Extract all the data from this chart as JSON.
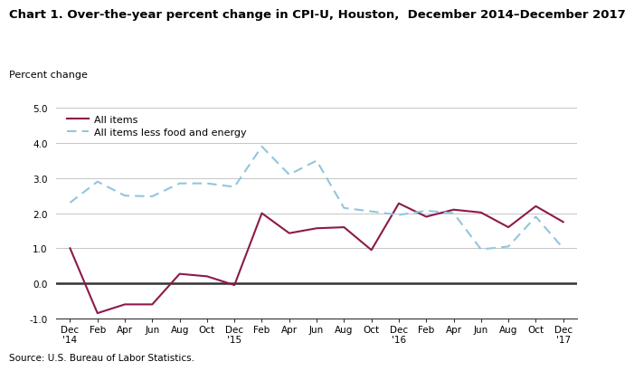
{
  "title": "Chart 1. Over-the-year percent change in CPI-U, Houston,  December 2014–December 2017",
  "ylabel": "Percent change",
  "source": "Source: U.S. Bureau of Labor Statistics.",
  "ylim": [
    -1.0,
    5.0
  ],
  "yticks": [
    -1.0,
    0.0,
    1.0,
    2.0,
    3.0,
    4.0,
    5.0
  ],
  "x_labels": [
    "Dec\n'14",
    "Feb",
    "Apr",
    "Jun",
    "Aug",
    "Oct",
    "Dec\n'15",
    "Feb",
    "Apr",
    "Jun",
    "Aug",
    "Oct",
    "Dec\n'16",
    "Feb",
    "Apr",
    "Jun",
    "Aug",
    "Oct",
    "Dec\n'17"
  ],
  "all_items_y": [
    1.0,
    -0.85,
    -0.6,
    -0.6,
    0.27,
    0.2,
    -0.05,
    2.0,
    1.43,
    1.57,
    1.6,
    0.95,
    2.28,
    1.9,
    2.1,
    2.02,
    1.6,
    2.2,
    1.75
  ],
  "all_items_less_y": [
    2.3,
    2.9,
    2.5,
    2.48,
    2.85,
    2.85,
    2.75,
    3.9,
    3.1,
    3.5,
    2.15,
    2.05,
    1.95,
    2.07,
    2.0,
    0.97,
    1.05,
    1.9,
    1.0
  ],
  "all_items_color": "#8B1A4A",
  "all_items_less_color": "#92C5DE",
  "background_color": "#ffffff",
  "grid_color": "#bbbbbb",
  "zero_line_color": "#333333",
  "spine_color": "#333333"
}
